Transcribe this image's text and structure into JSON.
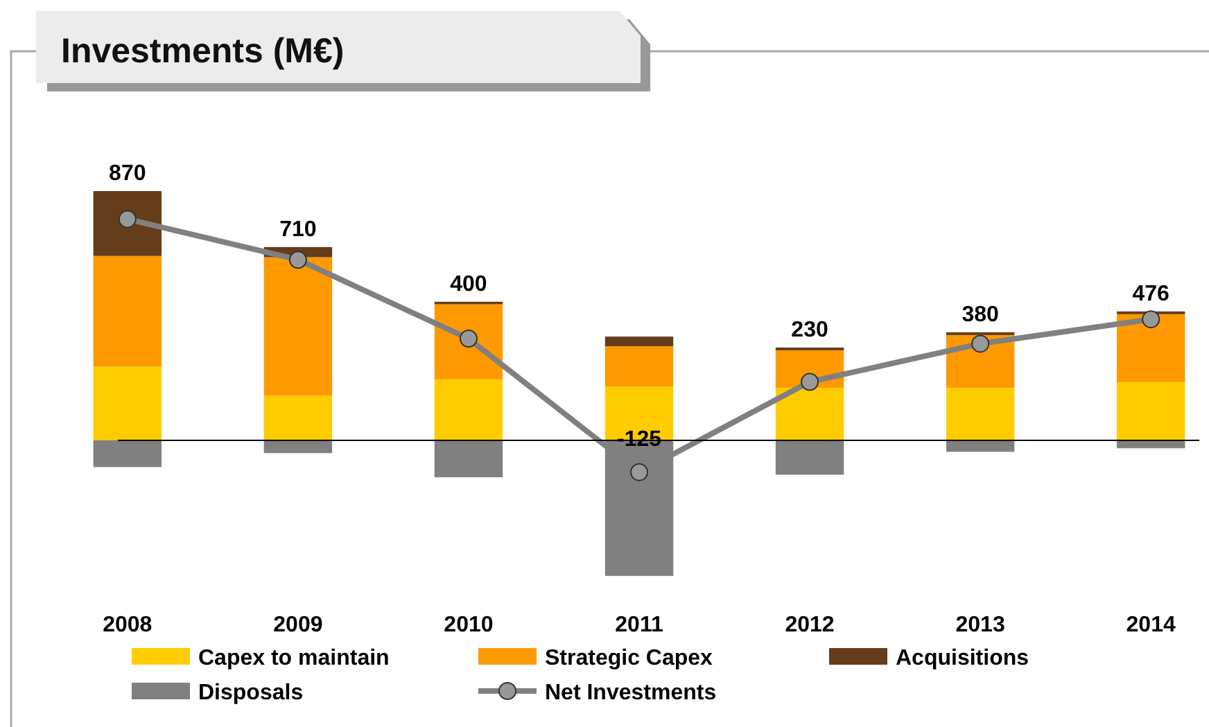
{
  "chart_data": {
    "type": "bar",
    "title": "Investments (M€)",
    "stacked": true,
    "legend": "bottom",
    "categories": [
      "2008",
      "2009",
      "2010",
      "2011",
      "2012",
      "2013",
      "2014"
    ],
    "series": [
      {
        "name": "Capex to maintain",
        "color": "#ffcc00",
        "values": [
          290,
          175,
          240,
          212,
          207,
          207,
          229
        ]
      },
      {
        "name": "Strategic Capex",
        "color": "#ff9900",
        "values": [
          435,
          545,
          295,
          158,
          147,
          207,
          267
        ]
      },
      {
        "name": "Acquisitions",
        "color": "#663d1a",
        "values": [
          255,
          40,
          10,
          38,
          11,
          11,
          11
        ]
      },
      {
        "name": "Disposals",
        "color": "#808080",
        "values": [
          -105,
          -50,
          -145,
          -533,
          -135,
          -45,
          -31
        ]
      },
      {
        "name": "Net Investments",
        "type": "line",
        "color": "#808080",
        "marker": "circle",
        "values": [
          870,
          710,
          400,
          -125,
          230,
          380,
          476
        ],
        "value_labels": [
          "870",
          "710",
          "400",
          "-125",
          "230",
          "380",
          "476"
        ]
      }
    ]
  }
}
